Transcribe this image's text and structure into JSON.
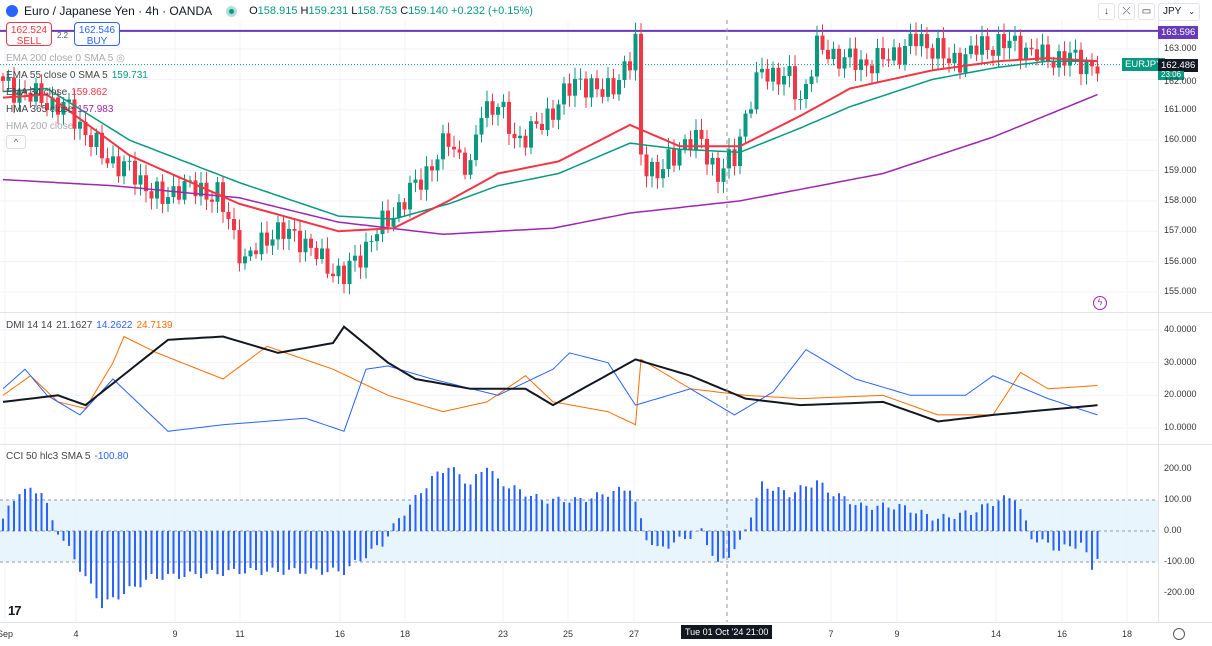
{
  "header": {
    "symbol": "Euro / Japanese Yen · 4h · OANDA",
    "open": "158.915",
    "high": "159.231",
    "low": "158.753",
    "close": "159.140",
    "change": "+0.232 (+0.15%)",
    "o_label": "O",
    "h_label": "H",
    "l_label": "L",
    "c_label": "C"
  },
  "trade": {
    "sell_price": "162.524",
    "sell_label": "SELL",
    "spread": "2.2",
    "buy_price": "162.546",
    "buy_label": "BUY"
  },
  "indicators": [
    {
      "name": "EMA 200 close 0 SMA 5",
      "value": "",
      "hidden": true
    },
    {
      "name": "EMA 55 close 0 SMA 5",
      "value": "159.731",
      "color": "#089981"
    },
    {
      "name": "EMA 34 close",
      "value": "159.862",
      "color": "#f23645"
    },
    {
      "name": "HMA 365 close",
      "value": "157.983",
      "color": "#9c27b0"
    },
    {
      "name": "HMA 200 close",
      "value": "",
      "hidden": true
    }
  ],
  "toolbar": {
    "currency": "JPY",
    "collapse": "^"
  },
  "price_axis": {
    "ticks": [
      "163.000",
      "162.000",
      "161.000",
      "160.000",
      "159.000",
      "158.000",
      "157.000",
      "156.000",
      "155.000"
    ],
    "hline_label": "163.596",
    "hline_value": 163.596,
    "symbol_tag": "EURJPY",
    "last_price": "162.486",
    "last_value": 162.486,
    "countdown": "23:06"
  },
  "dmi": {
    "title": "DMI 14 14",
    "adx": "21.1627",
    "plus_di": "14.2622",
    "minus_di": "24.7139",
    "ticks": [
      "40.0000",
      "30.0000",
      "20.0000",
      "10.0000"
    ],
    "adx_points": [
      [
        0,
        18
      ],
      [
        10,
        20
      ],
      [
        15,
        17
      ],
      [
        30,
        37
      ],
      [
        40,
        38
      ],
      [
        50,
        33
      ],
      [
        60,
        36
      ],
      [
        62,
        41
      ],
      [
        70,
        30
      ],
      [
        75,
        25
      ],
      [
        85,
        22
      ],
      [
        95,
        22
      ],
      [
        100,
        17
      ],
      [
        115,
        31
      ],
      [
        125,
        26
      ],
      [
        135,
        19
      ],
      [
        145,
        17
      ],
      [
        160,
        18
      ],
      [
        170,
        12
      ],
      [
        180,
        14
      ],
      [
        199,
        17
      ]
    ],
    "plus_points": [
      [
        0,
        22
      ],
      [
        4,
        28
      ],
      [
        8,
        20
      ],
      [
        14,
        14
      ],
      [
        20,
        25
      ],
      [
        30,
        9
      ],
      [
        40,
        11
      ],
      [
        55,
        13
      ],
      [
        62,
        9
      ],
      [
        66,
        28
      ],
      [
        70,
        29
      ],
      [
        78,
        25
      ],
      [
        90,
        20
      ],
      [
        100,
        28
      ],
      [
        103,
        33
      ],
      [
        110,
        30
      ],
      [
        115,
        17
      ],
      [
        125,
        22
      ],
      [
        133,
        14
      ],
      [
        140,
        21
      ],
      [
        146,
        34
      ],
      [
        155,
        25
      ],
      [
        165,
        20
      ],
      [
        175,
        20
      ],
      [
        180,
        26
      ],
      [
        190,
        19
      ],
      [
        199,
        14
      ]
    ],
    "minus_points": [
      [
        0,
        20
      ],
      [
        5,
        26
      ],
      [
        10,
        18
      ],
      [
        15,
        16
      ],
      [
        20,
        30
      ],
      [
        22,
        38
      ],
      [
        28,
        33
      ],
      [
        40,
        25
      ],
      [
        48,
        35
      ],
      [
        60,
        28
      ],
      [
        70,
        20
      ],
      [
        80,
        15
      ],
      [
        88,
        18
      ],
      [
        95,
        26
      ],
      [
        100,
        18
      ],
      [
        110,
        15
      ],
      [
        115,
        11
      ],
      [
        116,
        31
      ],
      [
        125,
        22
      ],
      [
        135,
        20
      ],
      [
        145,
        19
      ],
      [
        160,
        20
      ],
      [
        170,
        14
      ],
      [
        180,
        14
      ],
      [
        185,
        27
      ],
      [
        190,
        22
      ],
      [
        199,
        23
      ]
    ]
  },
  "cci": {
    "title": "CCI 50 hlc3 SMA 5",
    "value": "-100.80",
    "ticks": [
      "200.00",
      "100.00",
      "0.00",
      "-100.00",
      "-200.00"
    ],
    "points": [
      [
        0,
        40
      ],
      [
        3,
        130
      ],
      [
        7,
        130
      ],
      [
        9,
        30
      ],
      [
        12,
        -60
      ],
      [
        18,
        -240
      ],
      [
        27,
        -150
      ],
      [
        36,
        -140
      ],
      [
        43,
        -130
      ],
      [
        54,
        -130
      ],
      [
        62,
        -130
      ],
      [
        69,
        -40
      ],
      [
        72,
        40
      ],
      [
        78,
        170
      ],
      [
        81,
        210
      ],
      [
        85,
        150
      ],
      [
        88,
        215
      ],
      [
        90,
        160
      ],
      [
        98,
        100
      ],
      [
        105,
        100
      ],
      [
        114,
        140
      ],
      [
        117,
        -20
      ],
      [
        119,
        -60
      ],
      [
        127,
        0
      ],
      [
        130,
        -110
      ],
      [
        134,
        -40
      ],
      [
        138,
        150
      ],
      [
        143,
        120
      ],
      [
        148,
        160
      ],
      [
        150,
        130
      ],
      [
        156,
        80
      ],
      [
        163,
        80
      ],
      [
        170,
        40
      ],
      [
        176,
        60
      ],
      [
        181,
        100
      ],
      [
        184,
        110
      ],
      [
        187,
        -20
      ],
      [
        192,
        -60
      ],
      [
        196,
        -40
      ],
      [
        198,
        -120
      ],
      [
        199,
        -80
      ]
    ]
  },
  "price": {
    "close_points": [
      [
        0,
        161.8
      ],
      [
        12,
        161.0
      ],
      [
        18,
        159.5
      ],
      [
        23,
        159.0
      ],
      [
        29,
        158.0
      ],
      [
        32,
        158.5
      ],
      [
        39,
        158.2
      ],
      [
        44,
        156.0
      ],
      [
        49,
        157.0
      ],
      [
        54,
        156.8
      ],
      [
        58,
        156.0
      ],
      [
        62,
        155.5
      ],
      [
        68,
        157.0
      ],
      [
        72,
        157.8
      ],
      [
        78,
        159.2
      ],
      [
        81,
        160.0
      ],
      [
        85,
        159.0
      ],
      [
        87,
        161.0
      ],
      [
        90,
        161.2
      ],
      [
        93,
        160.0
      ],
      [
        98,
        160.5
      ],
      [
        101,
        161.3
      ],
      [
        105,
        162.0
      ],
      [
        109,
        161.5
      ],
      [
        114,
        162.5
      ],
      [
        115,
        163.2
      ],
      [
        116,
        159.5
      ],
      [
        119,
        158.8
      ],
      [
        123,
        159.8
      ],
      [
        127,
        160.0
      ],
      [
        130,
        158.8
      ],
      [
        133,
        159.5
      ],
      [
        135,
        160.8
      ],
      [
        138,
        162.3
      ],
      [
        143,
        162.0
      ],
      [
        145,
        161.3
      ],
      [
        148,
        163.0
      ],
      [
        151,
        162.8
      ],
      [
        156,
        162.5
      ],
      [
        161,
        162.7
      ],
      [
        166,
        163.3
      ],
      [
        170,
        163.0
      ],
      [
        172,
        162.5
      ],
      [
        177,
        163.0
      ],
      [
        181,
        163.2
      ],
      [
        185,
        163.1
      ],
      [
        189,
        162.7
      ],
      [
        194,
        162.7
      ],
      [
        199,
        162.4
      ]
    ],
    "ema34_points": [
      [
        0,
        161.4
      ],
      [
        8,
        161.5
      ],
      [
        23,
        159.5
      ],
      [
        43,
        157.9
      ],
      [
        61,
        157.0
      ],
      [
        71,
        157.1
      ],
      [
        81,
        158.0
      ],
      [
        90,
        158.9
      ],
      [
        101,
        159.3
      ],
      [
        114,
        160.5
      ],
      [
        123,
        159.8
      ],
      [
        134,
        159.8
      ],
      [
        145,
        160.8
      ],
      [
        154,
        161.7
      ],
      [
        169,
        162.3
      ],
      [
        181,
        162.6
      ],
      [
        190,
        162.7
      ],
      [
        199,
        162.6
      ]
    ],
    "ema55_points": [
      [
        0,
        161.6
      ],
      [
        8,
        161.7
      ],
      [
        23,
        160.0
      ],
      [
        43,
        158.6
      ],
      [
        61,
        157.5
      ],
      [
        71,
        157.4
      ],
      [
        81,
        157.9
      ],
      [
        90,
        158.5
      ],
      [
        101,
        158.9
      ],
      [
        114,
        159.9
      ],
      [
        123,
        159.7
      ],
      [
        134,
        159.6
      ],
      [
        145,
        160.4
      ],
      [
        154,
        161.1
      ],
      [
        169,
        162.0
      ],
      [
        181,
        162.4
      ],
      [
        190,
        162.6
      ],
      [
        199,
        162.6
      ]
    ],
    "hma365_points": [
      [
        0,
        158.7
      ],
      [
        20,
        158.5
      ],
      [
        43,
        158.1
      ],
      [
        61,
        157.3
      ],
      [
        80,
        156.9
      ],
      [
        100,
        157.1
      ],
      [
        114,
        157.6
      ],
      [
        134,
        158.0
      ],
      [
        160,
        158.9
      ],
      [
        180,
        160.1
      ],
      [
        199,
        161.5
      ]
    ]
  },
  "colors": {
    "up": "#089981",
    "down": "#f23645",
    "ema34": "#f23645",
    "ema55": "#089981",
    "hma365": "#9c27b0",
    "hline": "#673ab7",
    "adx": "#131722",
    "plus_di": "#2962ff",
    "minus_di": "#ff6d00",
    "cci": "#2962ff"
  },
  "time_axis": {
    "labels": [
      [
        "Sep",
        5
      ],
      [
        "4",
        76
      ],
      [
        "9",
        175
      ],
      [
        "11",
        240
      ],
      [
        "16",
        340
      ],
      [
        "18",
        405
      ],
      [
        "23",
        503
      ],
      [
        "25",
        568
      ],
      [
        "27",
        634
      ],
      [
        "7",
        831
      ],
      [
        "9",
        897
      ],
      [
        "14",
        996
      ],
      [
        "16",
        1062
      ],
      [
        "18",
        1127
      ]
    ],
    "crosshair_label": "Tue 01 Oct '24  21:00"
  }
}
